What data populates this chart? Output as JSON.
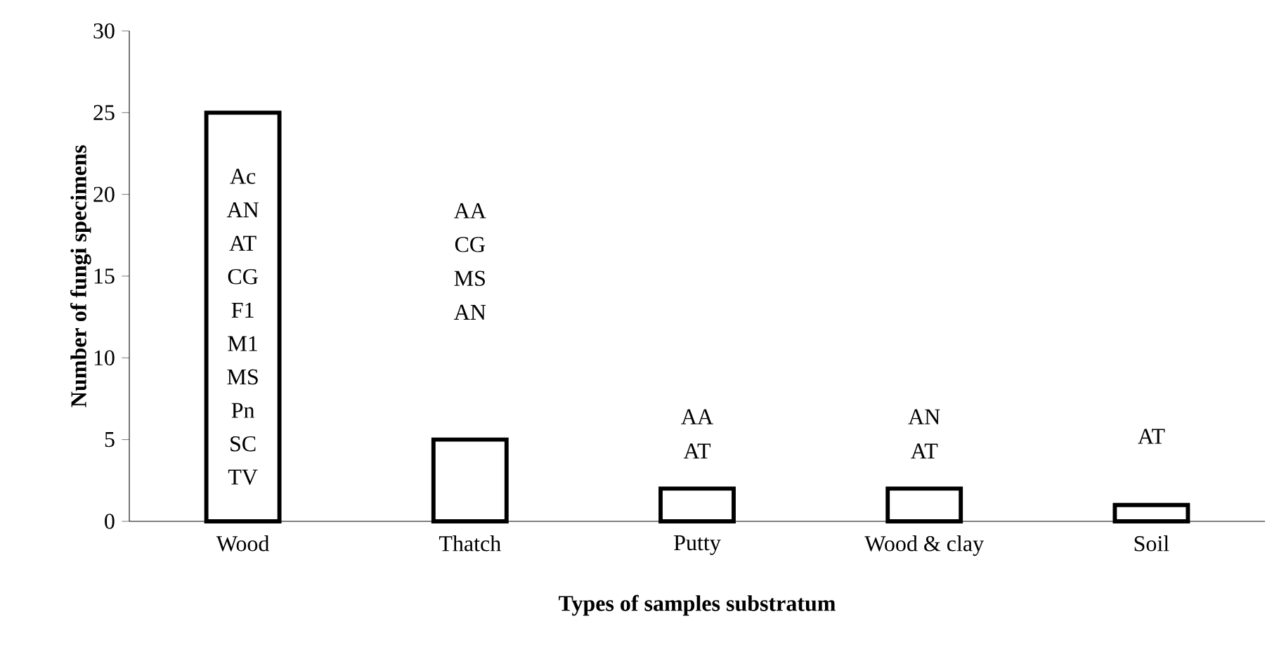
{
  "chart_data": {
    "type": "bar",
    "categories": [
      "Wood",
      "Thatch",
      "Putty",
      "Wood & clay",
      "Soil"
    ],
    "values": [
      25,
      5,
      2,
      2,
      1
    ],
    "color": "#ffffff",
    "xlabel": "Types of samples substratum",
    "ylabel": "Number of fungi specimens",
    "ylim": [
      0,
      30
    ],
    "yticks": [
      0,
      5,
      10,
      15,
      20,
      25,
      30
    ],
    "grid": false,
    "annotations": [
      "Ac",
      "AN",
      "AT",
      "CG",
      "F1",
      "M1",
      "MS",
      "Pn",
      "SC",
      "TV",
      "AA",
      "CG",
      "MS",
      "AN",
      "AA",
      "AT",
      "AN",
      "AT",
      "AT"
    ]
  }
}
